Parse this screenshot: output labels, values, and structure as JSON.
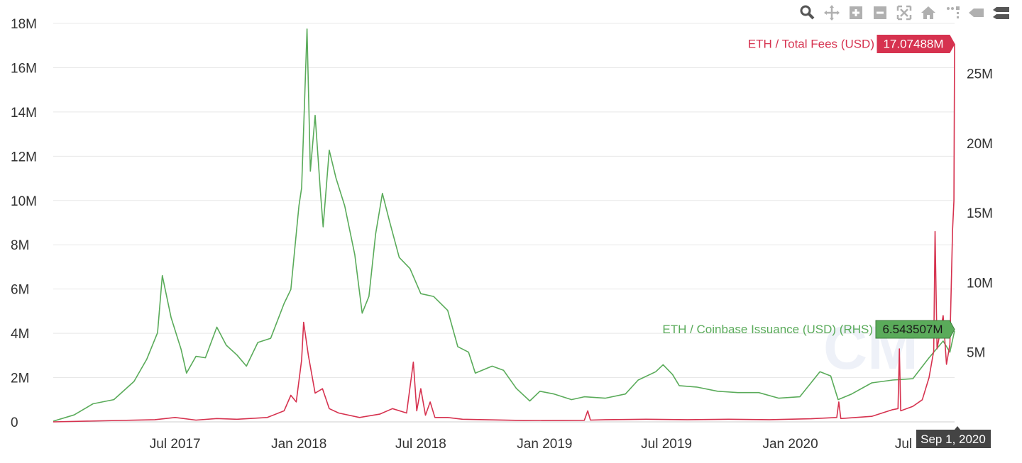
{
  "toolbar": {
    "buttons": [
      {
        "name": "zoom-icon"
      },
      {
        "name": "pan-icon"
      },
      {
        "name": "zoom-in-icon"
      },
      {
        "name": "zoom-out-icon"
      },
      {
        "name": "autoscale-icon"
      },
      {
        "name": "reset-axes-icon"
      },
      {
        "name": "spike-lines-icon"
      },
      {
        "name": "hover-closest-icon"
      },
      {
        "name": "hover-compare-icon"
      }
    ],
    "icon_color": "#b0b0b0"
  },
  "chart_data": {
    "type": "line",
    "x_ticks": [
      "Jul 2017",
      "Jan 2018",
      "Jul 2018",
      "Jan 2019",
      "Jul 2019",
      "Jan 2020",
      "Jul 20"
    ],
    "x_tick_dates": [
      "2017-07-01",
      "2018-01-01",
      "2018-07-01",
      "2019-01-01",
      "2019-07-01",
      "2020-01-01",
      "2020-07-01"
    ],
    "x_range": [
      "2017-01-01",
      "2020-09-01"
    ],
    "y_left": {
      "ticks": [
        "0",
        "2M",
        "4M",
        "6M",
        "8M",
        "10M",
        "12M",
        "14M",
        "16M",
        "18M"
      ],
      "range": [
        0,
        18000000
      ]
    },
    "y_right": {
      "ticks": [
        "5M",
        "10M",
        "15M",
        "20M",
        "25M"
      ],
      "range": [
        0,
        28600000
      ]
    },
    "grid": true,
    "hover_date": "Sep 1, 2020",
    "series": [
      {
        "name": "ETH / Coinbase Issuance (USD) (RHS)",
        "axis": "right",
        "color": "#5aab5a",
        "hover_value": "6.543507M",
        "points": [
          [
            "2017-01-01",
            0.05
          ],
          [
            "2017-02-01",
            0.5
          ],
          [
            "2017-03-01",
            1.3
          ],
          [
            "2017-04-01",
            1.6
          ],
          [
            "2017-05-01",
            2.9
          ],
          [
            "2017-05-20",
            4.5
          ],
          [
            "2017-06-05",
            6.4
          ],
          [
            "2017-06-12",
            10.5
          ],
          [
            "2017-06-25",
            7.5
          ],
          [
            "2017-07-10",
            5.2
          ],
          [
            "2017-07-18",
            3.5
          ],
          [
            "2017-08-01",
            4.7
          ],
          [
            "2017-08-15",
            4.6
          ],
          [
            "2017-09-01",
            6.8
          ],
          [
            "2017-09-15",
            5.5
          ],
          [
            "2017-10-01",
            4.8
          ],
          [
            "2017-10-15",
            4.0
          ],
          [
            "2017-11-01",
            5.7
          ],
          [
            "2017-11-20",
            6.0
          ],
          [
            "2017-12-10",
            8.5
          ],
          [
            "2017-12-20",
            9.5
          ],
          [
            "2018-01-01",
            15.5
          ],
          [
            "2018-01-05",
            16.8
          ],
          [
            "2018-01-13",
            28.2
          ],
          [
            "2018-01-18",
            18.0
          ],
          [
            "2018-01-25",
            22.0
          ],
          [
            "2018-02-02",
            16.5
          ],
          [
            "2018-02-06",
            14.0
          ],
          [
            "2018-02-15",
            19.5
          ],
          [
            "2018-02-25",
            17.5
          ],
          [
            "2018-03-10",
            15.5
          ],
          [
            "2018-03-25",
            12.0
          ],
          [
            "2018-04-05",
            7.8
          ],
          [
            "2018-04-15",
            9.0
          ],
          [
            "2018-04-25",
            13.5
          ],
          [
            "2018-05-05",
            16.4
          ],
          [
            "2018-05-15",
            14.5
          ],
          [
            "2018-05-30",
            11.8
          ],
          [
            "2018-06-15",
            11.0
          ],
          [
            "2018-07-01",
            9.2
          ],
          [
            "2018-07-20",
            9.0
          ],
          [
            "2018-08-10",
            8.0
          ],
          [
            "2018-08-25",
            5.4
          ],
          [
            "2018-09-10",
            5.0
          ],
          [
            "2018-09-20",
            3.5
          ],
          [
            "2018-10-15",
            4.0
          ],
          [
            "2018-11-01",
            3.7
          ],
          [
            "2018-11-20",
            2.4
          ],
          [
            "2018-12-10",
            1.5
          ],
          [
            "2018-12-25",
            2.2
          ],
          [
            "2019-01-15",
            2.0
          ],
          [
            "2019-02-10",
            1.6
          ],
          [
            "2019-03-01",
            1.8
          ],
          [
            "2019-04-01",
            1.7
          ],
          [
            "2019-05-01",
            2.0
          ],
          [
            "2019-05-20",
            3.0
          ],
          [
            "2019-06-15",
            3.6
          ],
          [
            "2019-06-26",
            4.1
          ],
          [
            "2019-07-10",
            3.4
          ],
          [
            "2019-07-20",
            2.6
          ],
          [
            "2019-08-15",
            2.5
          ],
          [
            "2019-09-15",
            2.2
          ],
          [
            "2019-10-15",
            2.1
          ],
          [
            "2019-11-15",
            2.1
          ],
          [
            "2019-12-15",
            1.7
          ],
          [
            "2020-01-15",
            1.8
          ],
          [
            "2020-02-14",
            3.6
          ],
          [
            "2020-03-01",
            3.3
          ],
          [
            "2020-03-12",
            1.6
          ],
          [
            "2020-04-01",
            2.0
          ],
          [
            "2020-05-01",
            2.8
          ],
          [
            "2020-06-01",
            3.0
          ],
          [
            "2020-07-01",
            3.1
          ],
          [
            "2020-07-25",
            4.6
          ],
          [
            "2020-08-15",
            5.8
          ],
          [
            "2020-08-25",
            5.0
          ],
          [
            "2020-09-01",
            6.54
          ]
        ]
      },
      {
        "name": "ETH / Total Fees (USD)",
        "axis": "left",
        "color": "#d6324f",
        "hover_value": "17.07488M",
        "points": [
          [
            "2017-01-01",
            0.0
          ],
          [
            "2017-06-01",
            0.1
          ],
          [
            "2017-07-01",
            0.2
          ],
          [
            "2017-08-01",
            0.08
          ],
          [
            "2017-09-01",
            0.15
          ],
          [
            "2017-10-01",
            0.12
          ],
          [
            "2017-11-15",
            0.2
          ],
          [
            "2017-12-10",
            0.5
          ],
          [
            "2017-12-20",
            1.2
          ],
          [
            "2017-12-28",
            0.9
          ],
          [
            "2018-01-05",
            2.8
          ],
          [
            "2018-01-08",
            4.5
          ],
          [
            "2018-01-15",
            3.0
          ],
          [
            "2018-01-25",
            1.3
          ],
          [
            "2018-02-05",
            1.5
          ],
          [
            "2018-02-15",
            0.6
          ],
          [
            "2018-03-01",
            0.4
          ],
          [
            "2018-04-01",
            0.2
          ],
          [
            "2018-05-01",
            0.35
          ],
          [
            "2018-05-20",
            0.6
          ],
          [
            "2018-06-10",
            0.4
          ],
          [
            "2018-06-20",
            2.7
          ],
          [
            "2018-06-25",
            0.5
          ],
          [
            "2018-07-01",
            1.5
          ],
          [
            "2018-07-08",
            0.3
          ],
          [
            "2018-07-15",
            0.9
          ],
          [
            "2018-07-22",
            0.2
          ],
          [
            "2018-08-10",
            0.2
          ],
          [
            "2018-09-01",
            0.12
          ],
          [
            "2018-12-01",
            0.06
          ],
          [
            "2019-03-01",
            0.07
          ],
          [
            "2019-03-06",
            0.5
          ],
          [
            "2019-03-10",
            0.08
          ],
          [
            "2019-04-01",
            0.1
          ],
          [
            "2019-06-01",
            0.12
          ],
          [
            "2019-08-01",
            0.1
          ],
          [
            "2019-10-01",
            0.12
          ],
          [
            "2019-12-01",
            0.1
          ],
          [
            "2020-02-01",
            0.14
          ],
          [
            "2020-03-10",
            0.2
          ],
          [
            "2020-03-13",
            0.9
          ],
          [
            "2020-03-16",
            0.15
          ],
          [
            "2020-05-01",
            0.25
          ],
          [
            "2020-06-01",
            0.55
          ],
          [
            "2020-06-09",
            0.6
          ],
          [
            "2020-06-11",
            3.3
          ],
          [
            "2020-06-13",
            0.5
          ],
          [
            "2020-07-01",
            0.7
          ],
          [
            "2020-07-15",
            1.0
          ],
          [
            "2020-07-25",
            2.0
          ],
          [
            "2020-08-01",
            3.2
          ],
          [
            "2020-08-03",
            8.6
          ],
          [
            "2020-08-06",
            3.3
          ],
          [
            "2020-08-15",
            4.8
          ],
          [
            "2020-08-20",
            2.6
          ],
          [
            "2020-08-25",
            3.5
          ],
          [
            "2020-08-29",
            8.7
          ],
          [
            "2020-08-31",
            10.0
          ],
          [
            "2020-09-01",
            17.07
          ]
        ]
      }
    ]
  }
}
